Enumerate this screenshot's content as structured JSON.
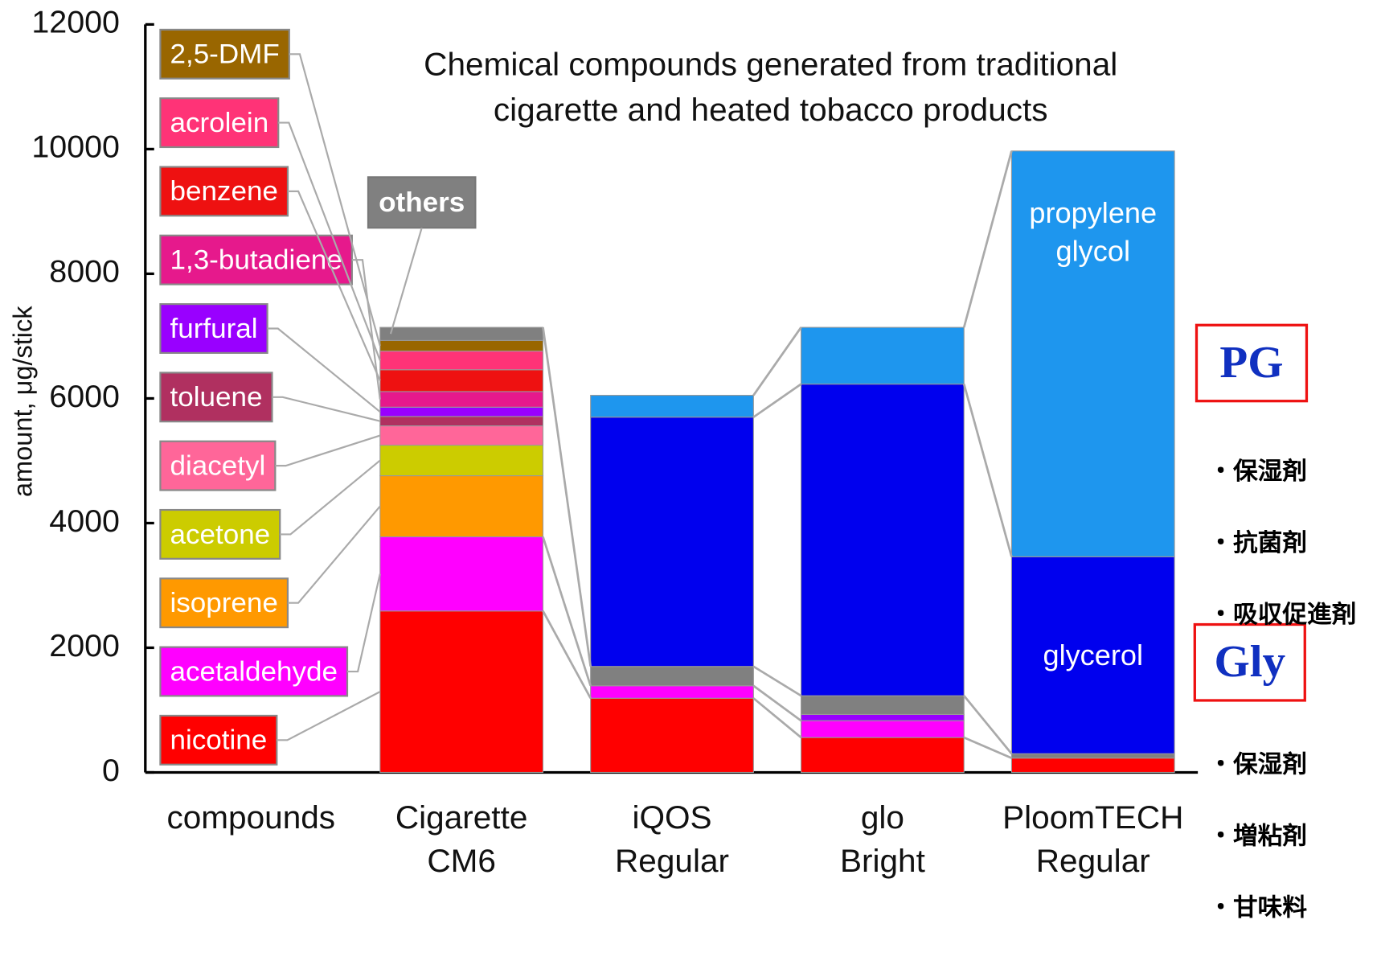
{
  "chart_data": {
    "type": "stacked-bar",
    "title": "Chemical compounds generated from traditional\ncigarette and heated tobacco products",
    "y_label": "amount, μg/stick",
    "categories": [
      "compounds",
      "Cigarette\nCM6",
      "iQOS\nRegular",
      "glo\nBright",
      "PloomTECH\nRegular"
    ],
    "ylim": [
      0,
      12000
    ],
    "yticks": [
      0,
      2000,
      4000,
      6000,
      8000,
      10000,
      12000
    ],
    "series": [
      {
        "name": "nicotine",
        "color": "#ff0000",
        "values": [
          null,
          2590,
          1190,
          560,
          230
        ]
      },
      {
        "name": "acetaldehyde",
        "color": "#ff00ff",
        "values": [
          null,
          1190,
          200,
          270,
          null
        ]
      },
      {
        "name": "isoprene",
        "color": "#ff9900",
        "values": [
          null,
          980,
          null,
          null,
          null
        ]
      },
      {
        "name": "acetone",
        "color": "#cccc00",
        "values": [
          null,
          490,
          null,
          null,
          null
        ]
      },
      {
        "name": "diacetyl",
        "color": "#ff6699",
        "values": [
          null,
          310,
          null,
          null,
          null
        ]
      },
      {
        "name": "toluene",
        "color": "#b03060",
        "values": [
          null,
          150,
          null,
          null,
          null
        ]
      },
      {
        "name": "furfural",
        "color": "#9900ff",
        "values": [
          null,
          150,
          null,
          100,
          null
        ]
      },
      {
        "name": "1,3-butadiene",
        "color": "#e6198c",
        "values": [
          null,
          250,
          null,
          null,
          null
        ]
      },
      {
        "name": "benzene",
        "color": "#ee1111",
        "values": [
          null,
          350,
          null,
          null,
          null
        ]
      },
      {
        "name": "acrolein",
        "color": "#ff3377",
        "values": [
          null,
          300,
          null,
          null,
          null
        ]
      },
      {
        "name": "2,5-DMF",
        "color": "#996600",
        "values": [
          null,
          170,
          null,
          null,
          null
        ]
      },
      {
        "name": "others",
        "color": "#808080",
        "values": [
          null,
          210,
          310,
          300,
          70
        ]
      },
      {
        "name": "glycerol",
        "color": "#0000ee",
        "values": [
          null,
          null,
          4000,
          5000,
          3160
        ]
      },
      {
        "name": "propylene glycol",
        "color": "#1e96ee",
        "values": [
          null,
          null,
          350,
          910,
          6510
        ]
      }
    ],
    "annotations": {
      "pg": {
        "label": "PG",
        "notes": [
          "・保湿剤",
          "・抗菌剤",
          "・吸収促進剤"
        ]
      },
      "gly": {
        "label": "Gly",
        "notes": [
          "・保湿剤",
          "・増粘剤",
          "・甘味料"
        ]
      }
    }
  }
}
